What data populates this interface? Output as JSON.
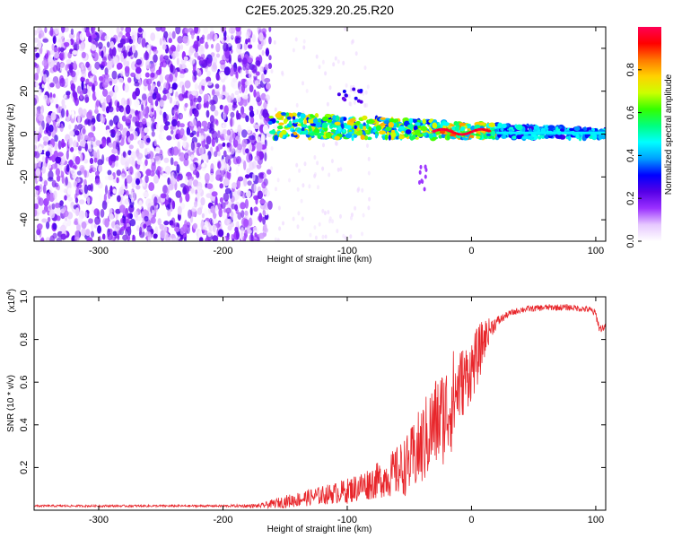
{
  "title": "C2E5.2025.329.20.25.R20",
  "chart_data": [
    {
      "type": "heatmap",
      "title": "C2E5.2025.329.20.25.R20",
      "xlabel": "Height of straight line (km)",
      "ylabel": "Frequency (Hz)",
      "xlim": [
        -352,
        108
      ],
      "ylim": [
        -50,
        50
      ],
      "xticks": [
        -300,
        -200,
        -100,
        0,
        100
      ],
      "yticks": [
        -40,
        -20,
        0,
        20,
        40
      ],
      "colorbar": {
        "label": "Normalized spectral amplitude",
        "range": [
          0,
          1
        ],
        "ticks": [
          0.0,
          0.2,
          0.4,
          0.6,
          0.8
        ],
        "tick_labels": [
          "0.0",
          "0.2",
          "0.4",
          "0.6",
          "0.8"
        ],
        "colors": [
          "#ffffff",
          "#e6c8ff",
          "#9b30ff",
          "#5500e6",
          "#0000ff",
          "#00a0ff",
          "#00ffff",
          "#00ff80",
          "#33ff00",
          "#ccff00",
          "#ffd200",
          "#ff7800",
          "#ff0000",
          "#ff0055"
        ]
      },
      "regions": [
        {
          "name": "noise",
          "x": [
            -352,
            -162
          ],
          "freq": [
            -50,
            50
          ],
          "amplitude": [
            0.0,
            0.25
          ]
        },
        {
          "name": "signal-band",
          "x": [
            -162,
            108
          ],
          "center_freq": [
            4,
            0
          ],
          "half_width": [
            6,
            2
          ],
          "amplitude": [
            0.3,
            1.0
          ]
        },
        {
          "name": "side-blob",
          "x": [
            -108,
            -88
          ],
          "freq": 18,
          "amplitude": 0.2
        },
        {
          "name": "tail",
          "x": [
            -42,
            -36
          ],
          "freq": [
            -12,
            -28
          ],
          "amplitude": 0.15
        }
      ]
    },
    {
      "type": "line",
      "xlabel": "Height of straight line (km)",
      "ylabel": "SNR (10 * v/v)",
      "exponent_label": "(x10",
      "exponent_value": "4",
      "exponent_close": ")",
      "xlim": [
        -352,
        108
      ],
      "ylim": [
        0,
        1.0
      ],
      "xticks": [
        -300,
        -200,
        -100,
        0,
        100
      ],
      "yticks": [
        0.2,
        0.4,
        0.6,
        0.8,
        1.0
      ],
      "ytick_labels": [
        "0.2",
        "0.4",
        "0.6",
        "0.8",
        "1.0"
      ],
      "color": "#e8262b",
      "series": [
        {
          "name": "SNR",
          "x": [
            -352,
            -300,
            -250,
            -200,
            -170,
            -150,
            -130,
            -110,
            -100,
            -90,
            -80,
            -70,
            -60,
            -50,
            -40,
            -30,
            -20,
            -15,
            -10,
            -5,
            0,
            5,
            10,
            15,
            20,
            25,
            30,
            40,
            60,
            80,
            95,
            100,
            103,
            108
          ],
          "y": [
            0.02,
            0.02,
            0.02,
            0.02,
            0.02,
            0.04,
            0.06,
            0.08,
            0.09,
            0.11,
            0.13,
            0.15,
            0.18,
            0.22,
            0.3,
            0.4,
            0.46,
            0.52,
            0.58,
            0.62,
            0.66,
            0.72,
            0.8,
            0.85,
            0.88,
            0.9,
            0.92,
            0.94,
            0.95,
            0.95,
            0.94,
            0.92,
            0.85,
            0.86
          ],
          "noise": [
            0.005,
            0.005,
            0.005,
            0.005,
            0.01,
            0.03,
            0.04,
            0.05,
            0.06,
            0.07,
            0.08,
            0.09,
            0.12,
            0.15,
            0.2,
            0.22,
            0.24,
            0.24,
            0.18,
            0.16,
            0.15,
            0.14,
            0.1,
            0.05,
            0.03,
            0.02,
            0.015,
            0.015,
            0.015,
            0.015,
            0.015,
            0.02,
            0.02,
            0.015
          ]
        }
      ]
    }
  ]
}
